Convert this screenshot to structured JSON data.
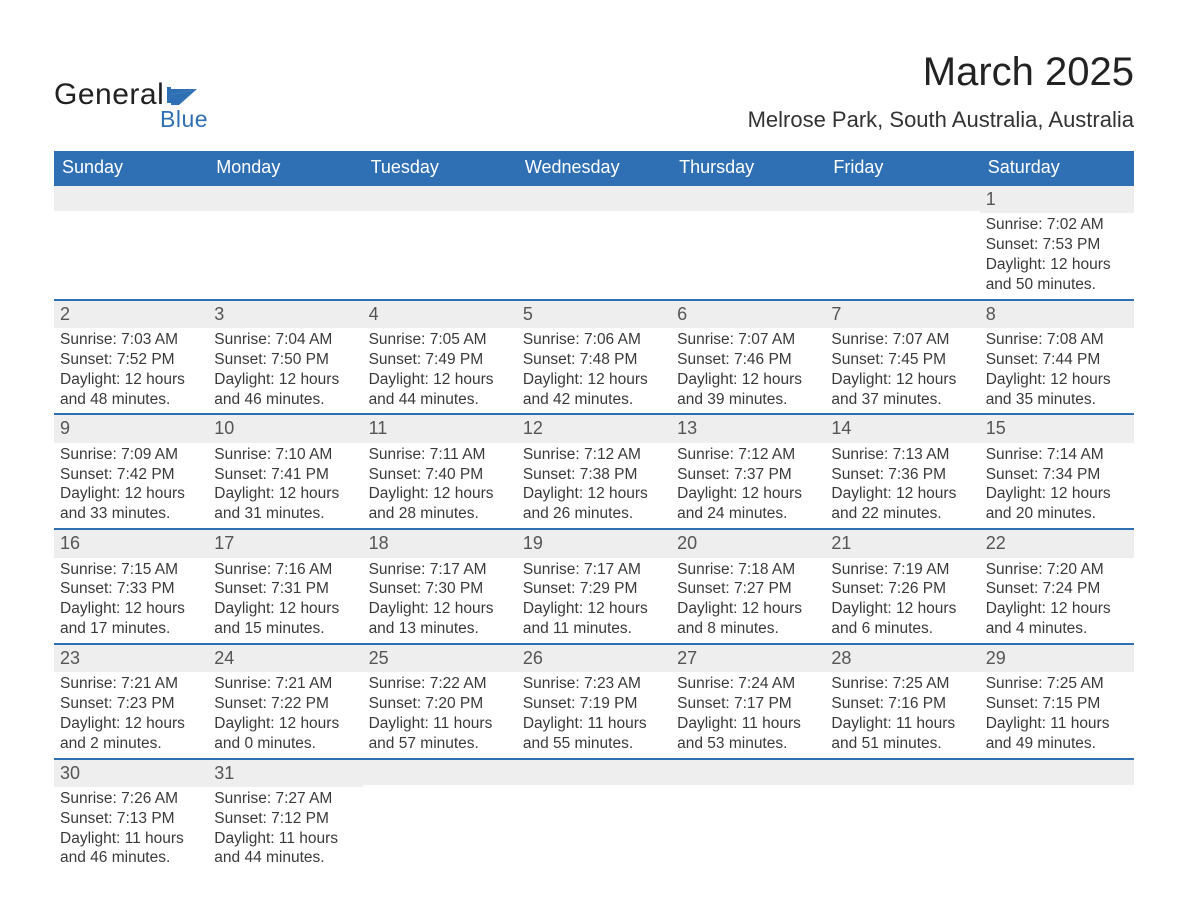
{
  "brand": {
    "general": "General",
    "blue": "Blue",
    "flag_color": "#2f6fb3"
  },
  "title": "March 2025",
  "location": "Melrose Park, South Australia, Australia",
  "colors": {
    "header_bg": "#2f6fb3",
    "header_text": "#ffffff",
    "daynum_bg": "#eeeeee",
    "daynum_border": "#2f6fb3",
    "body_text": "#3a3a3a",
    "page_bg": "#ffffff"
  },
  "typography": {
    "title_fontsize": 40,
    "location_fontsize": 22,
    "weekday_fontsize": 18,
    "daynum_fontsize": 18,
    "body_fontsize": 15.5
  },
  "weekdays": [
    "Sunday",
    "Monday",
    "Tuesday",
    "Wednesday",
    "Thursday",
    "Friday",
    "Saturday"
  ],
  "labels": {
    "sunrise": "Sunrise:",
    "sunset": "Sunset:",
    "daylight": "Daylight:"
  },
  "calendar": {
    "type": "table",
    "columns": 7,
    "first_day_column": 6,
    "days": [
      {
        "n": 1,
        "sunrise": "7:02 AM",
        "sunset": "7:53 PM",
        "daylight": "12 hours and 50 minutes."
      },
      {
        "n": 2,
        "sunrise": "7:03 AM",
        "sunset": "7:52 PM",
        "daylight": "12 hours and 48 minutes."
      },
      {
        "n": 3,
        "sunrise": "7:04 AM",
        "sunset": "7:50 PM",
        "daylight": "12 hours and 46 minutes."
      },
      {
        "n": 4,
        "sunrise": "7:05 AM",
        "sunset": "7:49 PM",
        "daylight": "12 hours and 44 minutes."
      },
      {
        "n": 5,
        "sunrise": "7:06 AM",
        "sunset": "7:48 PM",
        "daylight": "12 hours and 42 minutes."
      },
      {
        "n": 6,
        "sunrise": "7:07 AM",
        "sunset": "7:46 PM",
        "daylight": "12 hours and 39 minutes."
      },
      {
        "n": 7,
        "sunrise": "7:07 AM",
        "sunset": "7:45 PM",
        "daylight": "12 hours and 37 minutes."
      },
      {
        "n": 8,
        "sunrise": "7:08 AM",
        "sunset": "7:44 PM",
        "daylight": "12 hours and 35 minutes."
      },
      {
        "n": 9,
        "sunrise": "7:09 AM",
        "sunset": "7:42 PM",
        "daylight": "12 hours and 33 minutes."
      },
      {
        "n": 10,
        "sunrise": "7:10 AM",
        "sunset": "7:41 PM",
        "daylight": "12 hours and 31 minutes."
      },
      {
        "n": 11,
        "sunrise": "7:11 AM",
        "sunset": "7:40 PM",
        "daylight": "12 hours and 28 minutes."
      },
      {
        "n": 12,
        "sunrise": "7:12 AM",
        "sunset": "7:38 PM",
        "daylight": "12 hours and 26 minutes."
      },
      {
        "n": 13,
        "sunrise": "7:12 AM",
        "sunset": "7:37 PM",
        "daylight": "12 hours and 24 minutes."
      },
      {
        "n": 14,
        "sunrise": "7:13 AM",
        "sunset": "7:36 PM",
        "daylight": "12 hours and 22 minutes."
      },
      {
        "n": 15,
        "sunrise": "7:14 AM",
        "sunset": "7:34 PM",
        "daylight": "12 hours and 20 minutes."
      },
      {
        "n": 16,
        "sunrise": "7:15 AM",
        "sunset": "7:33 PM",
        "daylight": "12 hours and 17 minutes."
      },
      {
        "n": 17,
        "sunrise": "7:16 AM",
        "sunset": "7:31 PM",
        "daylight": "12 hours and 15 minutes."
      },
      {
        "n": 18,
        "sunrise": "7:17 AM",
        "sunset": "7:30 PM",
        "daylight": "12 hours and 13 minutes."
      },
      {
        "n": 19,
        "sunrise": "7:17 AM",
        "sunset": "7:29 PM",
        "daylight": "12 hours and 11 minutes."
      },
      {
        "n": 20,
        "sunrise": "7:18 AM",
        "sunset": "7:27 PM",
        "daylight": "12 hours and 8 minutes."
      },
      {
        "n": 21,
        "sunrise": "7:19 AM",
        "sunset": "7:26 PM",
        "daylight": "12 hours and 6 minutes."
      },
      {
        "n": 22,
        "sunrise": "7:20 AM",
        "sunset": "7:24 PM",
        "daylight": "12 hours and 4 minutes."
      },
      {
        "n": 23,
        "sunrise": "7:21 AM",
        "sunset": "7:23 PM",
        "daylight": "12 hours and 2 minutes."
      },
      {
        "n": 24,
        "sunrise": "7:21 AM",
        "sunset": "7:22 PM",
        "daylight": "12 hours and 0 minutes."
      },
      {
        "n": 25,
        "sunrise": "7:22 AM",
        "sunset": "7:20 PM",
        "daylight": "11 hours and 57 minutes."
      },
      {
        "n": 26,
        "sunrise": "7:23 AM",
        "sunset": "7:19 PM",
        "daylight": "11 hours and 55 minutes."
      },
      {
        "n": 27,
        "sunrise": "7:24 AM",
        "sunset": "7:17 PM",
        "daylight": "11 hours and 53 minutes."
      },
      {
        "n": 28,
        "sunrise": "7:25 AM",
        "sunset": "7:16 PM",
        "daylight": "11 hours and 51 minutes."
      },
      {
        "n": 29,
        "sunrise": "7:25 AM",
        "sunset": "7:15 PM",
        "daylight": "11 hours and 49 minutes."
      },
      {
        "n": 30,
        "sunrise": "7:26 AM",
        "sunset": "7:13 PM",
        "daylight": "11 hours and 46 minutes."
      },
      {
        "n": 31,
        "sunrise": "7:27 AM",
        "sunset": "7:12 PM",
        "daylight": "11 hours and 44 minutes."
      }
    ]
  }
}
